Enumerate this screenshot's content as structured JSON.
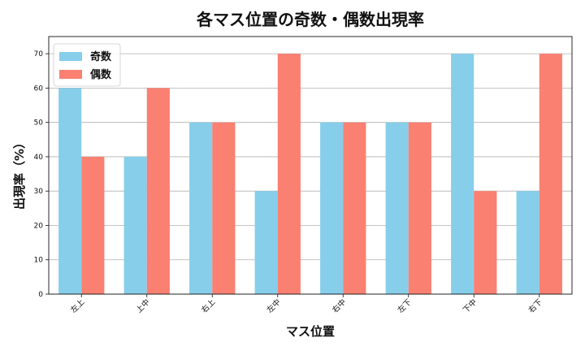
{
  "chart_data": {
    "type": "bar",
    "title": "各マス位置の奇数・偶数出現率",
    "xlabel": "マス位置",
    "ylabel": "出現率（%）",
    "categories": [
      "左上",
      "上中",
      "右上",
      "左中",
      "右中",
      "左下",
      "下中",
      "右下"
    ],
    "series": [
      {
        "name": "奇数",
        "color": "#87ceeb",
        "values": [
          60,
          40,
          50,
          30,
          50,
          50,
          70,
          30
        ]
      },
      {
        "name": "偶数",
        "color": "#fa8072",
        "values": [
          40,
          60,
          50,
          70,
          50,
          50,
          30,
          70
        ]
      }
    ],
    "ylim": [
      0,
      75
    ],
    "yticks": [
      0,
      10,
      20,
      30,
      40,
      50,
      60,
      70
    ],
    "grid": true,
    "legend_position": "top-left"
  }
}
